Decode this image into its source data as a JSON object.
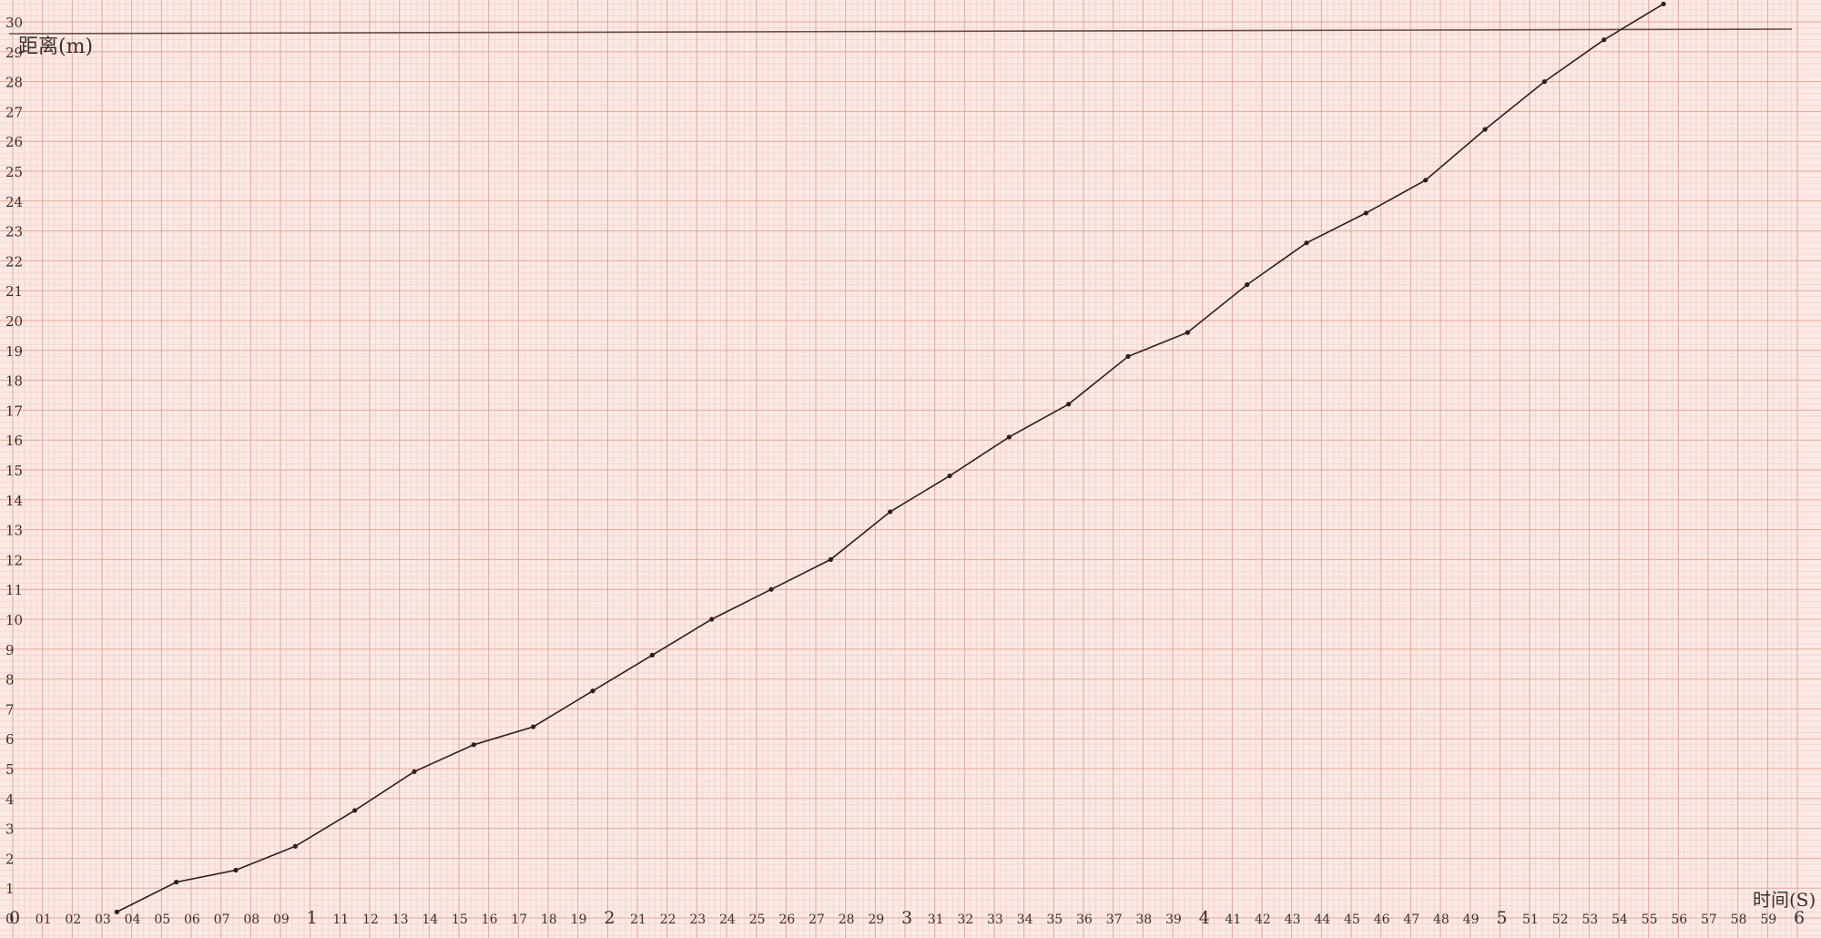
{
  "chart_data": {
    "type": "line",
    "title": "",
    "xlabel": "时间(S)",
    "ylabel": "距离(m)",
    "xlim": [
      0,
      6
    ],
    "ylim": [
      0,
      30
    ],
    "grid": true,
    "x_tick_labels": [
      "0",
      "01",
      "02",
      "03",
      "04",
      "05",
      "06",
      "07",
      "08",
      "09",
      "1",
      "11",
      "12",
      "13",
      "14",
      "15",
      "16",
      "17",
      "18",
      "19",
      "2",
      "21",
      "22",
      "23",
      "24",
      "25",
      "26",
      "27",
      "28",
      "29",
      "3",
      "31",
      "32",
      "33",
      "34",
      "35",
      "36",
      "37",
      "38",
      "39",
      "4",
      "41",
      "42",
      "43",
      "44",
      "45",
      "46",
      "47",
      "48",
      "49",
      "5",
      "51",
      "52",
      "53",
      "54",
      "55",
      "56",
      "57",
      "58",
      "59",
      "6"
    ],
    "y_tick_labels": [
      "0",
      "1",
      "2",
      "3",
      "4",
      "5",
      "6",
      "7",
      "8",
      "9",
      "10",
      "11",
      "12",
      "13",
      "14",
      "15",
      "16",
      "17",
      "18",
      "19",
      "20",
      "21",
      "22",
      "23",
      "24",
      "25",
      "26",
      "27",
      "28",
      "29",
      "30"
    ],
    "series": [
      {
        "name": "距离",
        "x": [
          0.35,
          0.55,
          0.75,
          0.95,
          1.15,
          1.35,
          1.55,
          1.75,
          1.95,
          2.15,
          2.35,
          2.55,
          2.75,
          2.95,
          3.15,
          3.35,
          3.55,
          3.75,
          3.95,
          4.15,
          4.35,
          4.55,
          4.75,
          4.95,
          5.15,
          5.35,
          5.55
        ],
        "y": [
          0.2,
          1.2,
          1.6,
          2.4,
          3.6,
          4.9,
          5.8,
          6.4,
          7.6,
          8.8,
          10.0,
          11.0,
          12.0,
          13.6,
          14.8,
          16.1,
          17.2,
          18.8,
          19.6,
          21.2,
          22.6,
          23.6,
          24.7,
          26.4,
          28.0,
          29.4,
          30.6
        ]
      }
    ]
  }
}
